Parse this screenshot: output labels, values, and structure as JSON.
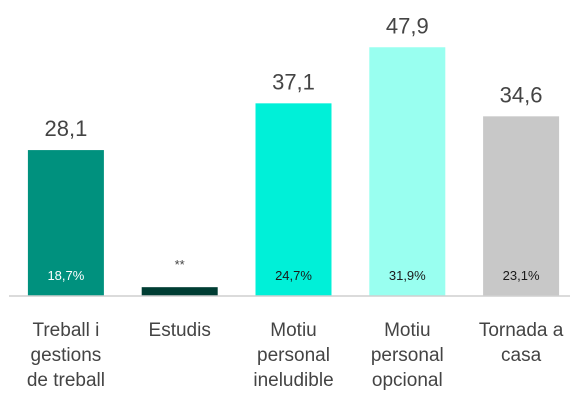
{
  "chart_data": {
    "type": "bar",
    "categories": [
      [
        "Treball i",
        "gestions",
        "de treball"
      ],
      [
        "Estudis"
      ],
      [
        "Motiu",
        "personal",
        "ineludible"
      ],
      [
        "Motiu",
        "personal",
        "opcional"
      ],
      [
        "Tornada a",
        "casa"
      ]
    ],
    "values": [
      28.1,
      1.7,
      37.1,
      47.9,
      34.6
    ],
    "value_labels": [
      "28,1",
      "**",
      "37,1",
      "47,9",
      "34,6"
    ],
    "colors": [
      "#00917e",
      "#003d33",
      "#00f0d8",
      "#99fff0",
      "#c8c8c8"
    ],
    "shares": [
      18.7,
      null,
      24.7,
      31.9,
      23.1
    ],
    "share_labels": [
      "18,7%",
      null,
      "24,7%",
      "31,9%",
      "23,1%"
    ],
    "ylim": [
      0,
      57
    ]
  }
}
